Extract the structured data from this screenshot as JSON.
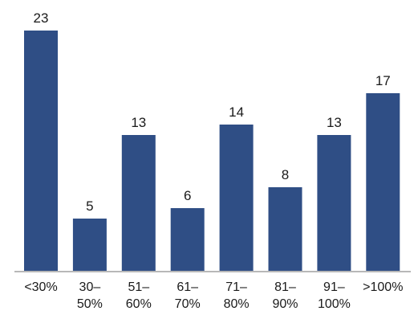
{
  "chart_data": {
    "type": "bar",
    "categories": [
      [
        "<30%"
      ],
      [
        "30–",
        "50%"
      ],
      [
        "51–",
        "60%"
      ],
      [
        "61–",
        "70%"
      ],
      [
        "71–",
        "80%"
      ],
      [
        "81–",
        "90%"
      ],
      [
        "91–",
        "100%"
      ],
      [
        ">100%"
      ]
    ],
    "values": [
      23,
      5,
      13,
      6,
      14,
      8,
      13,
      17
    ],
    "title": "",
    "xlabel": "",
    "ylabel": "",
    "ylim": [
      0,
      23
    ],
    "grid": false,
    "legend": "none",
    "colors": {
      "bar": "#2f4e85",
      "axis": "#b8b8b8",
      "text": "#1a1a1a"
    }
  }
}
